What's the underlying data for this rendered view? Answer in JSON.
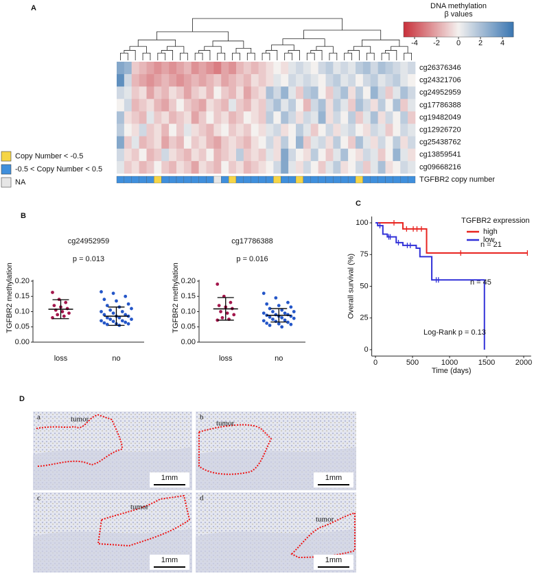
{
  "panel_labels": [
    "A",
    "B",
    "C",
    "D"
  ],
  "chart_data": [
    {
      "type": "heatmap",
      "colorbar_title": [
        "DNA methylation",
        "β values"
      ],
      "zlim": [
        -5,
        5
      ],
      "zticks": [
        -4,
        -2,
        0,
        2,
        4
      ],
      "colors": [
        "#c8303a",
        "#f4f1ef",
        "#3a76b2"
      ],
      "rows": [
        "cg26376346",
        "cg24321706",
        "cg24952959",
        "cg17786388",
        "cg19482049",
        "cg12926720",
        "cg25438762",
        "cg13859541",
        "cg09668216"
      ],
      "values": [
        [
          3,
          2.5,
          -1,
          -1.5,
          -2,
          -2.5,
          -2,
          -2.5,
          -2,
          -1.5,
          -2.5,
          -2,
          -2.5,
          -3,
          -2,
          -2.5,
          -1.5,
          -1,
          -1.5,
          -1,
          -0.5,
          0,
          -0.5,
          0.5,
          1,
          0.5,
          0,
          1,
          1.5,
          0.5,
          1,
          0.5,
          1.5,
          2,
          1,
          2,
          1.5,
          1,
          0.5,
          1
        ],
        [
          4,
          1,
          -1.5,
          -2,
          -2.5,
          -2,
          -1.5,
          -2,
          -2.5,
          -2,
          -1.5,
          -2,
          -1.5,
          -1,
          -2,
          -1.5,
          -1,
          -1.5,
          -0.5,
          -1,
          -0.5,
          0.5,
          0,
          1,
          0.5,
          1,
          0.5,
          0,
          1,
          1.5,
          0.5,
          1,
          0,
          1,
          1.5,
          0.5,
          1,
          1.5,
          0.5,
          0
        ],
        [
          1,
          0.5,
          -1,
          -0.5,
          -2,
          -1,
          -1.5,
          -0.5,
          -1,
          -2,
          -1,
          -0.5,
          -1.5,
          0,
          -1,
          -1.5,
          -0.5,
          -2,
          -1,
          -0.5,
          2,
          1,
          2.5,
          0.5,
          -1,
          1.5,
          2,
          0,
          -1,
          1,
          2,
          -0.5,
          1.5,
          0,
          2.5,
          1,
          -1,
          0.5,
          2,
          1
        ],
        [
          0,
          1,
          -1.5,
          -1,
          -0.5,
          -1.5,
          -2,
          -1,
          0,
          -1,
          -1.5,
          -2,
          -0.5,
          -1,
          -1.5,
          0.5,
          -1,
          -1.5,
          -0.5,
          -1,
          1,
          2,
          0.5,
          1.5,
          0,
          -1.5,
          1,
          2,
          -0.5,
          1.5,
          0.5,
          -1,
          2,
          1,
          -0.5,
          1.5,
          0,
          2,
          -1,
          0.5
        ],
        [
          2,
          -0.5,
          -1,
          -1.5,
          0.5,
          -1,
          -0.5,
          -1.5,
          -1,
          -0.5,
          -2,
          -1,
          0,
          -1,
          -0.5,
          -1.5,
          -1,
          0,
          -0.5,
          -1,
          1.5,
          0,
          2,
          1,
          -0.5,
          1,
          0.5,
          2.5,
          -0.5,
          1,
          0,
          1.5,
          -1,
          0.5,
          2,
          -0.5,
          1,
          0,
          1.5,
          -1
        ],
        [
          1.5,
          0,
          -0.5,
          1,
          -1,
          -0.5,
          -1.5,
          0,
          -1,
          0.5,
          -0.5,
          -1,
          -1.5,
          -0.5,
          0,
          -1,
          -0.5,
          -1,
          0,
          -0.5,
          0.5,
          1,
          -0.5,
          0,
          1.5,
          0.5,
          -1,
          0,
          1,
          -0.5,
          0.5,
          1,
          0,
          -0.5,
          1,
          0.5,
          -1,
          0,
          1,
          0.5
        ],
        [
          3,
          -1,
          0.5,
          -1.5,
          -1,
          -0.5,
          -2,
          -1,
          -1.5,
          0,
          -1,
          -0.5,
          -1.5,
          -2,
          -1,
          -0.5,
          -1,
          -1.5,
          -0.5,
          0,
          1,
          -0.5,
          1.5,
          0,
          2.5,
          -1,
          0.5,
          1,
          -0.5,
          1.5,
          0,
          -1,
          2,
          0.5,
          -0.5,
          1,
          0,
          1.5,
          -0.5,
          1
        ],
        [
          1,
          -0.5,
          -1,
          0,
          -1.5,
          -1,
          1,
          -0.5,
          -1,
          -1.5,
          -0.5,
          -1,
          0,
          -1.5,
          -1,
          -0.5,
          1.5,
          -1,
          -0.5,
          -1,
          0.5,
          -0.5,
          3,
          1,
          0,
          -0.5,
          1.5,
          0,
          -1,
          0.5,
          2,
          0,
          -0.5,
          1,
          0.5,
          -1,
          0,
          2.5,
          0.5,
          -0.5
        ],
        [
          0.5,
          -1,
          -0.5,
          -1.5,
          -1,
          0,
          -1,
          -1.5,
          -0.5,
          -1,
          -2,
          -0.5,
          -1,
          -1.5,
          0,
          -1,
          -0.5,
          -1.5,
          -1,
          -0.5,
          0,
          1,
          3,
          0.5,
          -0.5,
          1,
          0,
          -1,
          0.5,
          1.5,
          -0.5,
          0,
          1,
          -1,
          0.5,
          2,
          -0.5,
          0,
          1,
          0.5
        ]
      ],
      "annotation_row": {
        "name": "TGFBR2 copy number",
        "values": [
          1,
          1,
          1,
          1,
          1,
          0,
          1,
          1,
          1,
          1,
          1,
          1,
          1,
          2,
          1,
          0,
          1,
          1,
          1,
          1,
          1,
          0,
          1,
          1,
          0,
          1,
          1,
          1,
          1,
          1,
          1,
          1,
          0,
          1,
          1,
          1,
          1,
          1,
          1,
          1
        ],
        "legend": [
          "Copy Number < -0.5",
          "-0.5 < Copy Number < 0.5",
          "NA"
        ],
        "colors": [
          "#f5d547",
          "#3f8fdc",
          "#e6e6e6"
        ]
      }
    },
    {
      "type": "dot",
      "title": "cg24952959",
      "subtitle": "p = 0.013",
      "ylabel": "TGFBR2 methylation",
      "categories": [
        "loss",
        "no"
      ],
      "colors": [
        "#a3174c",
        "#2456c8"
      ],
      "ylim": [
        0,
        0.2
      ],
      "yticks": [
        {
          "value": 0,
          "label": "0.00"
        },
        {
          "value": 0.05,
          "label": "0.05"
        },
        {
          "value": 0.1,
          "label": "0.10"
        },
        {
          "value": 0.15,
          "label": "0.15"
        },
        {
          "value": 0.2,
          "label": "0.20"
        }
      ],
      "values": [
        [
          0.163,
          0.14,
          0.13,
          0.12,
          0.115,
          0.11,
          0.105,
          0.1,
          0.095,
          0.09,
          0.085,
          0.08
        ],
        [
          0.165,
          0.16,
          0.15,
          0.14,
          0.135,
          0.125,
          0.12,
          0.115,
          0.11,
          0.105,
          0.1,
          0.1,
          0.095,
          0.09,
          0.09,
          0.085,
          0.085,
          0.08,
          0.08,
          0.075,
          0.075,
          0.07,
          0.07,
          0.068,
          0.065,
          0.063,
          0.06,
          0.06,
          0.058,
          0.055
        ]
      ],
      "mean": [
        0.108,
        0.085
      ],
      "sd": [
        0.031,
        0.03
      ]
    },
    {
      "type": "dot",
      "title": "cg17786388",
      "subtitle": "p = 0.016",
      "ylabel": "TGFBR2 methylation",
      "categories": [
        "loss",
        "no"
      ],
      "colors": [
        "#a3174c",
        "#2456c8"
      ],
      "ylim": [
        0,
        0.2
      ],
      "yticks": [
        {
          "value": 0,
          "label": "0.00"
        },
        {
          "value": 0.05,
          "label": "0.05"
        },
        {
          "value": 0.1,
          "label": "0.10"
        },
        {
          "value": 0.15,
          "label": "0.15"
        },
        {
          "value": 0.2,
          "label": "0.20"
        }
      ],
      "values": [
        [
          0.19,
          0.15,
          0.13,
          0.12,
          0.115,
          0.11,
          0.1,
          0.095,
          0.09,
          0.08,
          0.075,
          0.072
        ],
        [
          0.16,
          0.145,
          0.13,
          0.125,
          0.12,
          0.115,
          0.11,
          0.105,
          0.1,
          0.1,
          0.095,
          0.095,
          0.09,
          0.09,
          0.088,
          0.085,
          0.085,
          0.082,
          0.08,
          0.078,
          0.075,
          0.072,
          0.07,
          0.068,
          0.065,
          0.062,
          0.06,
          0.058,
          0.055,
          0.05
        ]
      ],
      "mean": [
        0.109,
        0.088
      ],
      "sd": [
        0.037,
        0.022
      ]
    },
    {
      "type": "line",
      "xlabel": "Time (days)",
      "ylabel": "Overall survival (%)",
      "legend_title": "TGFBR2 expression",
      "xlim": [
        -50,
        2100
      ],
      "xticks": [
        0,
        500,
        1000,
        1500,
        2000
      ],
      "ylim": [
        -5,
        105
      ],
      "yticks": [
        0,
        25,
        50,
        75,
        100
      ],
      "series": [
        {
          "name": "high",
          "color": "#e8231f",
          "x": [
            0,
            370,
            370,
            690,
            690,
            2050
          ],
          "values": [
            100,
            100,
            95.2,
            95.2,
            76.2,
            76.2
          ],
          "censor_x": [
            250,
            420,
            510,
            560,
            620,
            1150,
            2050
          ],
          "censor_values": [
            100,
            95.2,
            95.2,
            95.2,
            95.2,
            76.2,
            76.2
          ]
        },
        {
          "name": "low",
          "color": "#3030d8",
          "x": [
            0,
            30,
            30,
            100,
            100,
            160,
            160,
            280,
            280,
            370,
            370,
            550,
            550,
            600,
            600,
            760,
            760,
            1470,
            1470
          ],
          "values": [
            100,
            100,
            97.8,
            97.8,
            91.1,
            91.1,
            88.9,
            88.9,
            84.4,
            84.4,
            82.2,
            82.2,
            80,
            80,
            73.3,
            73.3,
            55,
            55,
            0
          ],
          "censor_x": [
            60,
            180,
            200,
            310,
            430,
            470,
            820,
            850
          ],
          "censor_values": [
            97.8,
            88.9,
            88.9,
            84.4,
            82.2,
            82.2,
            55,
            55
          ]
        }
      ],
      "annotations": [
        "n = 21",
        "n = 45",
        "Log-Rank p = 0.13"
      ]
    }
  ],
  "images": [
    {
      "label": "a",
      "annotation": "tumor",
      "scale": "1mm"
    },
    {
      "label": "b",
      "annotation": "tumor",
      "scale": "1mm"
    },
    {
      "label": "c",
      "annotation": "tumor",
      "scale": "1mm"
    },
    {
      "label": "d",
      "annotation": "tumor",
      "scale": "1mm"
    }
  ]
}
